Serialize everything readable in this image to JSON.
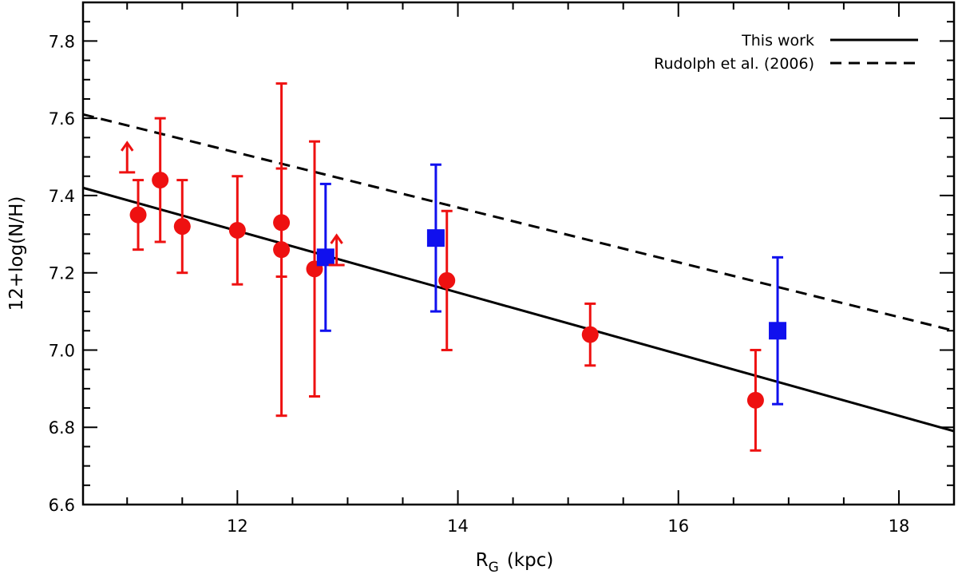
{
  "chart_data": {
    "type": "scatter",
    "xlabel_main": "R",
    "xlabel_sub": "G",
    "xlabel_unit": "(kpc)",
    "ylabel": "12+log(N/H)",
    "xlim": [
      10.6,
      18.5
    ],
    "ylim": [
      6.6,
      7.9
    ],
    "x_ticks": [
      12,
      14,
      16,
      18
    ],
    "y_ticks": [
      6.6,
      6.8,
      7.0,
      7.2,
      7.4,
      7.6,
      7.8
    ],
    "x_tick_labels": [
      "12",
      "14",
      "16",
      "18"
    ],
    "y_tick_labels": [
      "6.6",
      "6.8",
      "7.0",
      "7.2",
      "7.4",
      "7.6",
      "7.8"
    ],
    "x_minor_step": 0.5,
    "y_minor_step": 0.05,
    "colors": {
      "red": "#ee1111",
      "blue": "#1010ee",
      "line": "#000000"
    },
    "series": [
      {
        "name": "red-points",
        "marker": "circle",
        "color": "#ee1111",
        "points": [
          {
            "x": 11.1,
            "y": 7.35,
            "lo": 7.26,
            "hi": 7.44
          },
          {
            "x": 11.3,
            "y": 7.44,
            "lo": 7.28,
            "hi": 7.6
          },
          {
            "x": 11.5,
            "y": 7.32,
            "lo": 7.2,
            "hi": 7.44
          },
          {
            "x": 12.0,
            "y": 7.31,
            "lo": 7.17,
            "hi": 7.45
          },
          {
            "x": 12.4,
            "y": 7.33,
            "lo": 7.19,
            "hi": 7.47
          },
          {
            "x": 12.4,
            "y": 7.26,
            "lo": 6.83,
            "hi": 7.69
          },
          {
            "x": 12.7,
            "y": 7.21,
            "lo": 6.88,
            "hi": 7.54
          },
          {
            "x": 13.9,
            "y": 7.18,
            "lo": 7.0,
            "hi": 7.36
          },
          {
            "x": 15.2,
            "y": 7.04,
            "lo": 6.96,
            "hi": 7.12
          },
          {
            "x": 16.7,
            "y": 6.87,
            "lo": 6.74,
            "hi": 7.0
          }
        ]
      },
      {
        "name": "blue-points",
        "marker": "square",
        "color": "#1010ee",
        "points": [
          {
            "x": 12.8,
            "y": 7.24,
            "lo": 7.05,
            "hi": 7.43
          },
          {
            "x": 13.8,
            "y": 7.29,
            "lo": 7.1,
            "hi": 7.48
          },
          {
            "x": 16.9,
            "y": 7.05,
            "lo": 6.86,
            "hi": 7.24
          }
        ]
      }
    ],
    "lower_limits": [
      {
        "x": 11.0,
        "y": 7.46
      },
      {
        "x": 12.9,
        "y": 7.22
      }
    ],
    "fits": [
      {
        "name": "This work",
        "style": "solid",
        "x": [
          10.6,
          18.5
        ],
        "y": [
          7.42,
          6.79
        ]
      },
      {
        "name": "Rudolph et al. (2006)",
        "style": "dashed",
        "x": [
          10.6,
          18.5
        ],
        "y": [
          7.61,
          7.05
        ]
      }
    ],
    "legend": {
      "position": "top-right",
      "entries": [
        {
          "label": "This work",
          "style": "solid"
        },
        {
          "label": "Rudolph et al. (2006)",
          "style": "dashed"
        }
      ]
    }
  }
}
